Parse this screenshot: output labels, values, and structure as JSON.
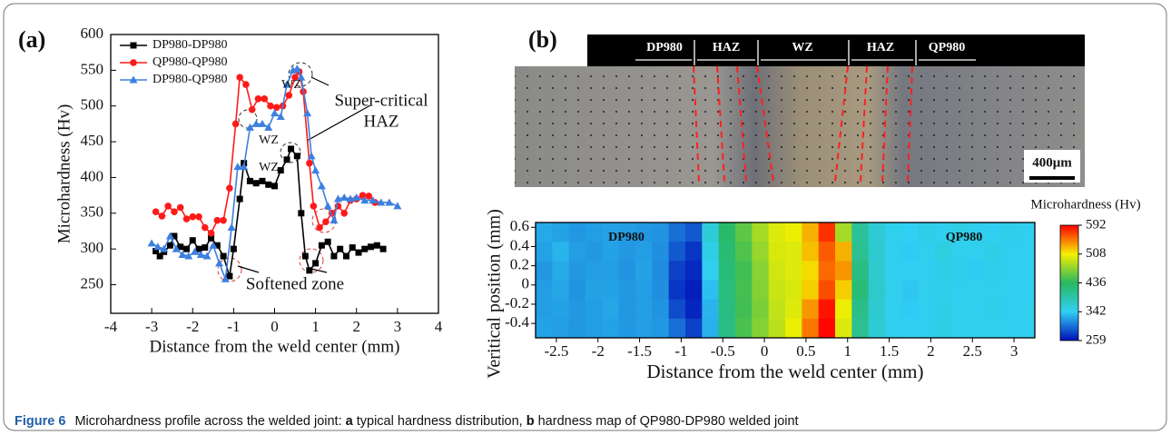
{
  "panels": [
    "(a)",
    "(b)"
  ],
  "caption": {
    "label": "Figure 6",
    "text1": "Microhardness profile across the welded joint: ",
    "a": "a",
    "text2": " typical hardness distribution, ",
    "b": "b",
    "text3": " hardness map of QP980-DP980 welded joint"
  },
  "micrograph": {
    "zones": [
      "DP980",
      "HAZ",
      "WZ",
      "HAZ",
      "QP980"
    ],
    "scale_bar": "400μm"
  },
  "chart_data": [
    {
      "type": "line",
      "xlabel": "Distance from the weld center (mm)",
      "ylabel": "Microhardness (Hv)",
      "xlim": [
        -4,
        4
      ],
      "xticks": [
        -4,
        -3,
        -2,
        -1,
        0,
        1,
        2,
        3,
        4
      ],
      "ylim": [
        210,
        600
      ],
      "yticks": [
        250,
        300,
        350,
        400,
        450,
        500,
        550,
        600
      ],
      "legend": "upper left",
      "annotations": [
        "WZ",
        "WZ",
        "WZ",
        "Super-critical",
        "HAZ",
        "Softened zone"
      ],
      "series": [
        {
          "name": "DP980-DP980",
          "color": "#000000",
          "marker": "square",
          "x": [
            -2.9,
            -2.8,
            -2.7,
            -2.55,
            -2.45,
            -2.3,
            -2.15,
            -2.0,
            -1.85,
            -1.7,
            -1.55,
            -1.4,
            -1.25,
            -1.1,
            -1.0,
            -0.85,
            -0.75,
            -0.6,
            -0.45,
            -0.3,
            -0.15,
            0.0,
            0.15,
            0.3,
            0.4,
            0.55,
            0.65,
            0.75,
            0.85,
            1.0,
            1.15,
            1.3,
            1.45,
            1.6,
            1.75,
            1.9,
            2.05,
            2.2,
            2.35,
            2.5,
            2.65
          ],
          "values": [
            297,
            290,
            296,
            305,
            318,
            303,
            300,
            312,
            300,
            302,
            315,
            305,
            290,
            262,
            300,
            370,
            420,
            395,
            392,
            395,
            390,
            388,
            410,
            425,
            440,
            430,
            350,
            290,
            270,
            280,
            305,
            310,
            290,
            300,
            290,
            302,
            295,
            300,
            303,
            305,
            300
          ]
        },
        {
          "name": "QP980-QP980",
          "color": "#ff1a1a",
          "marker": "circle",
          "x": [
            -2.9,
            -2.75,
            -2.6,
            -2.45,
            -2.3,
            -2.15,
            -2.0,
            -1.85,
            -1.7,
            -1.55,
            -1.4,
            -1.25,
            -1.1,
            -0.95,
            -0.85,
            -0.7,
            -0.55,
            -0.4,
            -0.25,
            -0.1,
            0.05,
            0.2,
            0.35,
            0.5,
            0.6,
            0.7,
            0.85,
            0.95,
            1.1,
            1.25,
            1.4,
            1.55,
            1.7,
            1.85,
            2.0,
            2.15,
            2.3,
            2.45
          ],
          "values": [
            352,
            346,
            360,
            352,
            358,
            342,
            345,
            345,
            330,
            322,
            340,
            340,
            385,
            475,
            540,
            530,
            495,
            510,
            510,
            500,
            498,
            500,
            515,
            540,
            548,
            520,
            420,
            360,
            330,
            338,
            350,
            360,
            350,
            368,
            370,
            375,
            374,
            365
          ]
        },
        {
          "name": "DP980-QP980",
          "color": "#3c7fe0",
          "marker": "triangle",
          "x": [
            -3.0,
            -2.85,
            -2.7,
            -2.55,
            -2.4,
            -2.25,
            -2.1,
            -1.95,
            -1.8,
            -1.65,
            -1.5,
            -1.35,
            -1.2,
            -1.05,
            -0.9,
            -0.75,
            -0.6,
            -0.45,
            -0.3,
            -0.15,
            0.0,
            0.15,
            0.3,
            0.45,
            0.55,
            0.65,
            0.8,
            0.9,
            1.0,
            1.15,
            1.3,
            1.45,
            1.55,
            1.7,
            1.85,
            2.0,
            2.2,
            2.4,
            2.6,
            2.8,
            3.0
          ],
          "values": [
            308,
            303,
            300,
            318,
            300,
            292,
            290,
            296,
            292,
            290,
            305,
            280,
            258,
            330,
            415,
            415,
            470,
            475,
            475,
            470,
            490,
            485,
            530,
            550,
            552,
            540,
            490,
            430,
            410,
            388,
            360,
            340,
            370,
            372,
            370,
            372,
            368,
            368,
            365,
            365,
            360
          ]
        }
      ]
    },
    {
      "type": "heatmap",
      "xlabel": "Distance from the weld center (mm)",
      "ylabel": "Veritical position (mm)",
      "colorbar_title": "Microhardness (Hv)",
      "annotations": [
        "DP980",
        "QP980"
      ],
      "xlim": [
        -2.75,
        3.25
      ],
      "xticks": [
        -2.5,
        -2.0,
        -1.5,
        -1.0,
        -0.5,
        0.0,
        0.5,
        1.0,
        1.5,
        2.0,
        2.5,
        3.0
      ],
      "ylim": [
        -0.55,
        0.65
      ],
      "yticks": [
        0.6,
        0.4,
        0.2,
        0.0,
        -0.2,
        -0.4
      ],
      "zticks": [
        259,
        342,
        436,
        508,
        592
      ],
      "colorscale": [
        "#0010b8",
        "#30d0f4",
        "#28b860",
        "#f4f000",
        "#ff0000"
      ],
      "x": [
        -2.65,
        -2.45,
        -2.25,
        -2.05,
        -1.85,
        -1.65,
        -1.45,
        -1.25,
        -1.05,
        -0.85,
        -0.65,
        -0.45,
        -0.25,
        -0.05,
        0.15,
        0.35,
        0.55,
        0.75,
        0.95,
        1.15,
        1.35,
        1.55,
        1.75,
        1.95,
        2.15,
        2.35,
        2.55,
        2.75,
        2.95,
        3.15
      ],
      "y": [
        0.55,
        0.35,
        0.15,
        -0.05,
        -0.25,
        -0.45
      ],
      "values": [
        [
          325,
          322,
          318,
          320,
          322,
          320,
          318,
          316,
          300,
          290,
          360,
          430,
          455,
          480,
          500,
          505,
          530,
          575,
          480,
          400,
          362,
          346,
          342,
          350,
          345,
          352,
          346,
          344,
          348,
          345
        ],
        [
          322,
          330,
          320,
          318,
          322,
          318,
          320,
          314,
          290,
          275,
          350,
          425,
          450,
          475,
          498,
          500,
          525,
          560,
          530,
          405,
          365,
          345,
          340,
          345,
          355,
          346,
          345,
          350,
          344,
          345
        ],
        [
          318,
          326,
          318,
          320,
          320,
          316,
          322,
          312,
          280,
          270,
          345,
          420,
          445,
          470,
          495,
          500,
          515,
          555,
          540,
          415,
          366,
          344,
          342,
          344,
          350,
          348,
          340,
          348,
          345,
          344
        ],
        [
          320,
          324,
          316,
          322,
          322,
          318,
          320,
          314,
          275,
          265,
          335,
          418,
          446,
          468,
          492,
          498,
          520,
          565,
          520,
          420,
          368,
          346,
          338,
          346,
          348,
          345,
          346,
          346,
          344,
          345
        ],
        [
          320,
          322,
          318,
          320,
          324,
          318,
          320,
          316,
          285,
          268,
          330,
          415,
          445,
          465,
          490,
          500,
          540,
          585,
          505,
          410,
          365,
          345,
          340,
          344,
          350,
          346,
          345,
          348,
          344,
          346
        ],
        [
          322,
          320,
          318,
          320,
          322,
          318,
          320,
          318,
          300,
          280,
          328,
          412,
          448,
          468,
          488,
          505,
          550,
          590,
          500,
          405,
          362,
          345,
          342,
          345,
          350,
          346,
          345,
          346,
          345,
          345
        ]
      ]
    }
  ]
}
